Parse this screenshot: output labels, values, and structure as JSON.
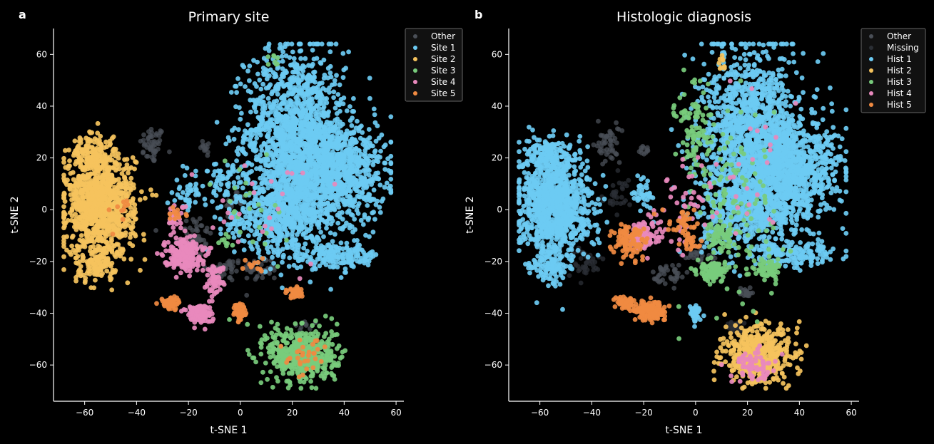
{
  "figure": {
    "background": "#000000",
    "dot_colors": {
      "Other": "#4a4f57",
      "Missing": "#2b2f35",
      "blue": "#6ccbf3",
      "yellow": "#f5c35d",
      "green": "#78cc7c",
      "pink": "#e889bd",
      "orange": "#f08a41"
    }
  },
  "panels": [
    {
      "letter": "a"
    },
    {
      "letter": "b"
    }
  ],
  "chart_data": [
    {
      "type": "scatter",
      "title": "Primary site",
      "xlabel": "t-SNE 1",
      "ylabel": "t-SNE 2",
      "xlim": [
        -72,
        63
      ],
      "ylim": [
        -74,
        70
      ],
      "xticks": [
        -60,
        -40,
        -20,
        0,
        20,
        40,
        60
      ],
      "yticks": [
        -60,
        -40,
        -20,
        0,
        20,
        40,
        60
      ],
      "legend_position": "upper-right",
      "series": [
        {
          "name": "Other",
          "color": "#4a4f57",
          "clusters": [
            {
              "cx": -34,
              "cy": 25,
              "rx": 4,
              "ry": 6,
              "n": 50
            },
            {
              "cx": -13,
              "cy": 24,
              "rx": 2,
              "ry": 3,
              "n": 12
            },
            {
              "cx": -18,
              "cy": -10,
              "rx": 6,
              "ry": 7,
              "n": 50
            },
            {
              "cx": -6,
              "cy": -23,
              "rx": 6,
              "ry": 4,
              "n": 40
            },
            {
              "cx": 8,
              "cy": -23,
              "rx": 6,
              "ry": 4,
              "n": 40
            },
            {
              "cx": 25,
              "cy": -45,
              "rx": 4,
              "ry": 2,
              "n": 10
            },
            {
              "cx": -2,
              "cy": 3,
              "rx": 3,
              "ry": 4,
              "n": 15
            }
          ]
        },
        {
          "name": "Site 1",
          "color": "#6ccbf3",
          "clusters": [
            {
              "cx": 21,
              "cy": 30,
              "rx": 16,
              "ry": 26,
              "n": 1300
            },
            {
              "cx": 38,
              "cy": 15,
              "rx": 15,
              "ry": 16,
              "n": 800
            },
            {
              "cx": 18,
              "cy": 0,
              "rx": 17,
              "ry": 15,
              "n": 700
            },
            {
              "cx": 37,
              "cy": -18,
              "rx": 15,
              "ry": 4,
              "n": 180
            },
            {
              "cx": -20,
              "cy": 6,
              "rx": 4,
              "ry": 6,
              "n": 45
            },
            {
              "cx": -6,
              "cy": 10,
              "rx": 5,
              "ry": 7,
              "n": 50
            },
            {
              "cx": -1,
              "cy": -5,
              "rx": 4,
              "ry": 5,
              "n": 30
            }
          ]
        },
        {
          "name": "Site 2",
          "color": "#f5c35d",
          "clusters": [
            {
              "cx": -54,
              "cy": 2,
              "rx": 11,
              "ry": 17,
              "n": 1100
            },
            {
              "cx": -58,
              "cy": 22,
              "rx": 6,
              "ry": 5,
              "n": 120
            },
            {
              "cx": -56,
              "cy": -22,
              "rx": 6,
              "ry": 5,
              "n": 90
            }
          ]
        },
        {
          "name": "Site 3",
          "color": "#78cc7c",
          "clusters": [
            {
              "cx": 24,
              "cy": -56,
              "rx": 11,
              "ry": 9,
              "n": 500
            },
            {
              "cx": 12,
              "cy": 57,
              "rx": 2,
              "ry": 3,
              "n": 8
            },
            {
              "cx": -5,
              "cy": -12,
              "rx": 3,
              "ry": 3,
              "n": 10
            },
            {
              "cx": 2,
              "cy": 0,
              "rx": 15,
              "ry": 20,
              "n": 25
            }
          ]
        },
        {
          "name": "Site 4",
          "color": "#e889bd",
          "clusters": [
            {
              "cx": -22,
              "cy": -17,
              "rx": 6,
              "ry": 5,
              "n": 220
            },
            {
              "cx": -16,
              "cy": -40,
              "rx": 4,
              "ry": 3,
              "n": 130
            },
            {
              "cx": -10,
              "cy": -27,
              "rx": 3,
              "ry": 5,
              "n": 60
            },
            {
              "cx": -25,
              "cy": -3,
              "rx": 3,
              "ry": 4,
              "n": 40
            },
            {
              "cx": 5,
              "cy": 0,
              "rx": 25,
              "ry": 20,
              "n": 25
            }
          ]
        },
        {
          "name": "Site 5",
          "color": "#f08a41",
          "clusters": [
            {
              "cx": -27,
              "cy": -36,
              "rx": 3,
              "ry": 2,
              "n": 50
            },
            {
              "cx": 0,
              "cy": -40,
              "rx": 2,
              "ry": 3,
              "n": 50
            },
            {
              "cx": 21,
              "cy": -32,
              "rx": 3,
              "ry": 2,
              "n": 35
            },
            {
              "cx": 24,
              "cy": -57,
              "rx": 7,
              "ry": 6,
              "n": 30
            },
            {
              "cx": -47,
              "cy": 0,
              "rx": 4,
              "ry": 8,
              "n": 10
            },
            {
              "cx": -24,
              "cy": -2,
              "rx": 3,
              "ry": 3,
              "n": 12
            },
            {
              "cx": 5,
              "cy": -22,
              "rx": 4,
              "ry": 3,
              "n": 12
            }
          ]
        }
      ]
    },
    {
      "type": "scatter",
      "title": "Histologic diagnosis",
      "xlabel": "t-SNE 1",
      "ylabel": "t-SNE 2",
      "xlim": [
        -72,
        63
      ],
      "ylim": [
        -74,
        70
      ],
      "xticks": [
        -60,
        -40,
        -20,
        0,
        20,
        40,
        60
      ],
      "yticks": [
        -60,
        -40,
        -20,
        0,
        20,
        40,
        60
      ],
      "legend_position": "upper-right",
      "series": [
        {
          "name": "Other",
          "color": "#4a4f57",
          "clusters": [
            {
              "cx": -34,
              "cy": 25,
              "rx": 4,
              "ry": 6,
              "n": 50
            },
            {
              "cx": -20,
              "cy": 24,
              "rx": 2,
              "ry": 3,
              "n": 12
            },
            {
              "cx": -10,
              "cy": -25,
              "rx": 5,
              "ry": 4,
              "n": 40
            },
            {
              "cx": 20,
              "cy": -32,
              "rx": 3,
              "ry": 2,
              "n": 20
            },
            {
              "cx": 2,
              "cy": -18,
              "rx": 6,
              "ry": 4,
              "n": 30
            }
          ]
        },
        {
          "name": "Missing",
          "color": "#2b2f35",
          "clusters": [
            {
              "cx": -42,
              "cy": -20,
              "rx": 5,
              "ry": 5,
              "n": 40
            },
            {
              "cx": 15,
              "cy": -45,
              "rx": 4,
              "ry": 2,
              "n": 20
            },
            {
              "cx": -30,
              "cy": 5,
              "rx": 5,
              "ry": 6,
              "n": 30
            }
          ]
        },
        {
          "name": "Hist 1",
          "color": "#6ccbf3",
          "clusters": [
            {
              "cx": 22,
              "cy": 30,
              "rx": 16,
              "ry": 26,
              "n": 1250
            },
            {
              "cx": 38,
              "cy": 15,
              "rx": 15,
              "ry": 16,
              "n": 800
            },
            {
              "cx": 20,
              "cy": 0,
              "rx": 15,
              "ry": 14,
              "n": 550
            },
            {
              "cx": 38,
              "cy": -17,
              "rx": 13,
              "ry": 4,
              "n": 160
            },
            {
              "cx": -54,
              "cy": 2,
              "rx": 11,
              "ry": 17,
              "n": 1100
            },
            {
              "cx": -58,
              "cy": 22,
              "rx": 6,
              "ry": 5,
              "n": 110
            },
            {
              "cx": -56,
              "cy": -22,
              "rx": 6,
              "ry": 5,
              "n": 90
            },
            {
              "cx": 0,
              "cy": -40,
              "rx": 2,
              "ry": 3,
              "n": 45
            },
            {
              "cx": -20,
              "cy": 6,
              "rx": 4,
              "ry": 6,
              "n": 40
            }
          ]
        },
        {
          "name": "Hist 2",
          "color": "#f5c35d",
          "clusters": [
            {
              "cx": 24,
              "cy": -56,
              "rx": 11,
              "ry": 9,
              "n": 480
            },
            {
              "cx": 10,
              "cy": 57,
              "rx": 2,
              "ry": 3,
              "n": 10
            }
          ]
        },
        {
          "name": "Hist 3",
          "color": "#78cc7c",
          "clusters": [
            {
              "cx": 7,
              "cy": -24,
              "rx": 5,
              "ry": 3,
              "n": 120
            },
            {
              "cx": 28,
              "cy": -23,
              "rx": 4,
              "ry": 3,
              "n": 70
            },
            {
              "cx": 10,
              "cy": -10,
              "rx": 4,
              "ry": 5,
              "n": 60
            },
            {
              "cx": 0,
              "cy": 30,
              "rx": 6,
              "ry": 15,
              "n": 100
            },
            {
              "cx": 15,
              "cy": 0,
              "rx": 14,
              "ry": 30,
              "n": 120
            }
          ]
        },
        {
          "name": "Hist 4",
          "color": "#e889bd",
          "clusters": [
            {
              "cx": -20,
              "cy": -10,
              "rx": 5,
              "ry": 5,
              "n": 110
            },
            {
              "cx": 22,
              "cy": -60,
              "rx": 7,
              "ry": 5,
              "n": 70
            },
            {
              "cx": -5,
              "cy": 0,
              "rx": 8,
              "ry": 15,
              "n": 40
            },
            {
              "cx": 20,
              "cy": 20,
              "rx": 20,
              "ry": 25,
              "n": 30
            }
          ]
        },
        {
          "name": "Hist 5",
          "color": "#f08a41",
          "clusters": [
            {
              "cx": -17,
              "cy": -39,
              "rx": 5,
              "ry": 3,
              "n": 140
            },
            {
              "cx": -27,
              "cy": -36,
              "rx": 3,
              "ry": 2,
              "n": 55
            },
            {
              "cx": -25,
              "cy": -12,
              "rx": 5,
              "ry": 6,
              "n": 110
            },
            {
              "cx": -5,
              "cy": -5,
              "rx": 5,
              "ry": 4,
              "n": 35
            },
            {
              "cx": -2,
              "cy": -12,
              "rx": 3,
              "ry": 3,
              "n": 25
            }
          ]
        }
      ]
    }
  ]
}
